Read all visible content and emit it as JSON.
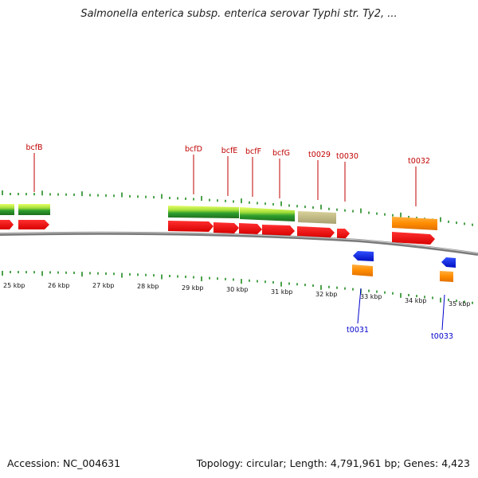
{
  "title": "Salmonella enterica subsp. enterica serovar Typhi str. Ty2, ...",
  "footer": {
    "accession": "Accession: NC_004631",
    "summary": "Topology: circular; Length: 4,791,961 bp; Genes: 4,423"
  },
  "scale": {
    "unit": "kbp",
    "labels": [
      "25 kbp",
      "26 kbp",
      "27 kbp",
      "28 kbp",
      "29 kbp",
      "30 kbp",
      "31 kbp",
      "32 kbp",
      "33 kbp",
      "34 kbp",
      "35 kbp"
    ]
  },
  "genes_forward": [
    {
      "label": "bcfB"
    },
    {
      "label": "bcfD"
    },
    {
      "label": "bcfE"
    },
    {
      "label": "bcfF"
    },
    {
      "label": "bcfG"
    },
    {
      "label": "t0029"
    },
    {
      "label": "t0030"
    },
    {
      "label": "t0032"
    }
  ],
  "genes_reverse": [
    {
      "label": "t0031"
    },
    {
      "label": "t0033"
    }
  ],
  "colors": {
    "forward_gene": "#ff0000",
    "reverse_gene": "#0000ff",
    "cds_orange": "#ff8c00",
    "green_feature": "#2e9e2e",
    "khaki_feature": "#bdb76b",
    "backbone": "#7a7a7a",
    "tick": "#1f8a1f",
    "label_forward": "#c00000",
    "label_reverse": "#0000cc"
  }
}
